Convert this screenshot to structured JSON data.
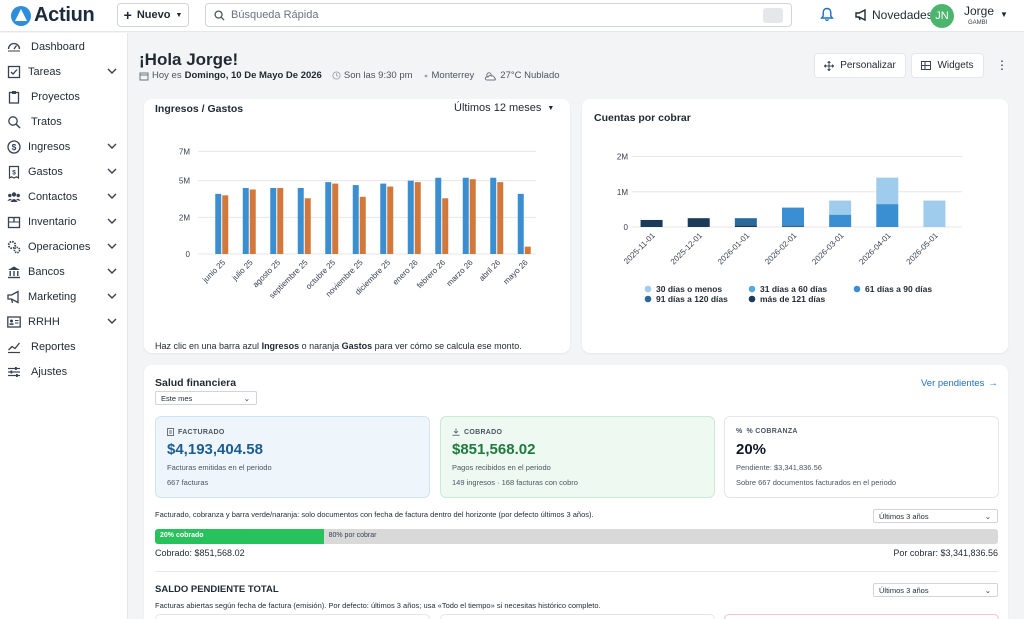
{
  "app": {
    "name": "Actiun"
  },
  "topbar": {
    "new_label": "Nuevo",
    "search_placeholder": "Búsqueda Rápida",
    "novedades_label": "Novedades",
    "user_initials": "JN",
    "user_name": "Jorge",
    "user_org": "GAMBI"
  },
  "sidebar": {
    "items": [
      {
        "label": "Dashboard",
        "icon": "dashboard-icon",
        "expandable": false
      },
      {
        "label": "Tareas",
        "icon": "checkbox-icon",
        "expandable": true
      },
      {
        "label": "Proyectos",
        "icon": "clipboard-icon",
        "expandable": false
      },
      {
        "label": "Tratos",
        "icon": "magnifier-icon",
        "expandable": false
      },
      {
        "label": "Ingresos",
        "icon": "dollar-icon",
        "expandable": true
      },
      {
        "label": "Gastos",
        "icon": "receipt-icon",
        "expandable": true
      },
      {
        "label": "Contactos",
        "icon": "people-icon",
        "expandable": true
      },
      {
        "label": "Inventario",
        "icon": "box-icon",
        "expandable": true
      },
      {
        "label": "Operaciones",
        "icon": "gears-icon",
        "expandable": true
      },
      {
        "label": "Bancos",
        "icon": "bank-icon",
        "expandable": true
      },
      {
        "label": "Marketing",
        "icon": "megaphone-icon",
        "expandable": true
      },
      {
        "label": "RRHH",
        "icon": "id-card-icon",
        "expandable": true
      },
      {
        "label": "Reportes",
        "icon": "line-chart-icon",
        "expandable": false
      },
      {
        "label": "Ajustes",
        "icon": "sliders-icon",
        "expandable": false
      }
    ]
  },
  "header": {
    "title": "¡Hola Jorge!",
    "today_prefix": "Hoy es",
    "today_date": "Domingo, 10 De Mayo De 2026",
    "time": "Son las 9:30 pm",
    "city": "Monterrey",
    "weather": "27°C Nublado",
    "personalizar_label": "Personalizar",
    "widgets_label": "Widgets"
  },
  "income_card": {
    "title": "Ingresos / Gastos",
    "period": "Últimos 12 meses",
    "note_pre": "Haz clic en una barra azul ",
    "note_b1": "Ingresos",
    "note_mid": " o naranja ",
    "note_b2": "Gastos",
    "note_post": " para ver cómo se calcula ese monto."
  },
  "receivables_card": {
    "title": "Cuentas por cobrar"
  },
  "colors": {
    "ingresos": "#3b8fd0",
    "gastos": "#d2783a",
    "d30": "#9fcbec",
    "d60": "#5aa7dc",
    "d90": "#3a8fd3",
    "d120": "#2a6a9a",
    "d121": "#1b3b59"
  },
  "chart_data": [
    {
      "type": "bar",
      "categories": [
        "junio 25",
        "julio 25",
        "agosto 25",
        "septiembre 25",
        "octubre 25",
        "noviembre 25",
        "diciembre 25",
        "enero 26",
        "febrero 26",
        "marzo 26",
        "abril 26",
        "mayo 26"
      ],
      "series": [
        {
          "name": "Ingresos",
          "values": [
            4.1,
            4.5,
            4.5,
            4.5,
            4.9,
            4.7,
            4.8,
            5.0,
            5.2,
            5.2,
            5.2,
            4.1
          ]
        },
        {
          "name": "Gastos",
          "values": [
            4.0,
            4.4,
            4.5,
            3.8,
            4.8,
            3.9,
            4.6,
            4.9,
            3.8,
            5.1,
            4.9,
            0.5
          ]
        }
      ],
      "yticks": [
        "0",
        "2M",
        "5M",
        "7M"
      ],
      "ylim": [
        0,
        7.5
      ],
      "grid": true
    },
    {
      "type": "bar",
      "stacked": true,
      "categories": [
        "2025-11-01",
        "2025-12-01",
        "2026-01-01",
        "2026-02-01",
        "2026-03-01",
        "2026-04-01",
        "2026-05-01"
      ],
      "series": [
        {
          "name": "30 días o menos",
          "values": [
            0,
            0,
            0,
            0,
            0.4,
            0.75,
            0.75
          ]
        },
        {
          "name": "31 días a 60 días",
          "values": [
            0,
            0,
            0,
            0,
            0,
            0,
            0
          ]
        },
        {
          "name": "61 días a 90 días",
          "values": [
            0,
            0,
            0,
            0.5,
            0.35,
            0.65,
            0
          ]
        },
        {
          "name": "91 días a 120 días",
          "values": [
            0,
            0,
            0.2,
            0.05,
            0,
            0,
            0
          ]
        },
        {
          "name": "más de 121 días",
          "values": [
            0.2,
            0.25,
            0.05,
            0,
            0,
            0,
            0
          ]
        }
      ],
      "yticks": [
        "0",
        "1M",
        "2M"
      ],
      "ylim": [
        0,
        2.1
      ],
      "legend_position": "bottom",
      "grid": true
    }
  ],
  "health": {
    "title": "Salud financiera",
    "period_select": "Este mes",
    "link_label": "Ver pendientes",
    "kpis": [
      {
        "label": "FACTURADO",
        "icon": "document-icon",
        "value": "$4,193,404.58",
        "desc": "Facturas emitidas en el periodo",
        "sub": "667 facturas"
      },
      {
        "label": "COBRADO",
        "icon": "download-icon",
        "value": "$851,568.02",
        "desc": "Pagos recibidos en el periodo",
        "sub": "149 ingresos · 168 facturas con cobro"
      },
      {
        "label": "% COBRANZA",
        "icon": "percent-icon",
        "value": "20%",
        "desc": "Pendiente: $3,341,836.56",
        "sub": "Sobre 667 documentos facturados en el periodo"
      }
    ],
    "horizon_note": "Facturado, cobranza y barra verde/naranja: solo documentos con fecha de factura dentro del horizonte (por defecto últimos 3 años).",
    "horizon_select": "Últimos 3 años",
    "progress": {
      "fraction": 0.2,
      "paid_label": "20% cobrado",
      "pending_label": "80% por cobrar",
      "collected_text": "Cobrado: $851,568.02",
      "pending_text": "Por cobrar: $3,341,836.56"
    },
    "saldo_title": "SALDO PENDIENTE TOTAL",
    "saldo_note": "Facturas abiertas según fecha de factura (emisión). Por defecto: últimos 3 años; usa «Todo el tiempo» si necesitas histórico completo.",
    "saldo_select": "Últimos 3 años"
  }
}
